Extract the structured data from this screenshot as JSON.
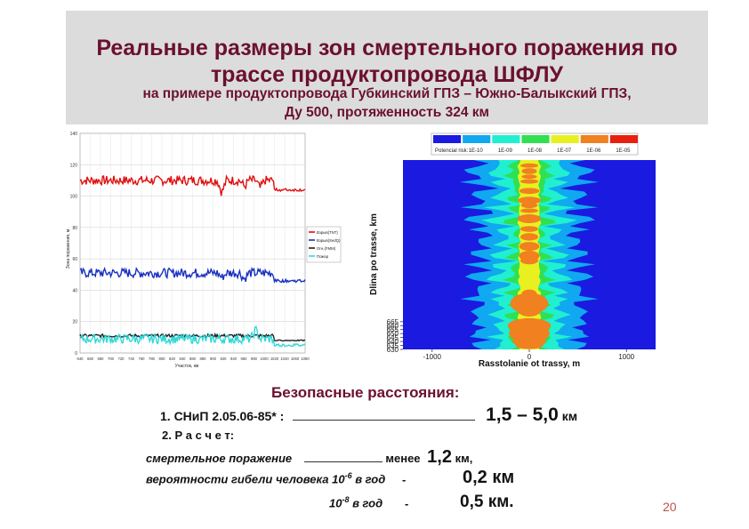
{
  "slide": {
    "title_line1": "Реальные размеры зон смертельного поражения по",
    "title_line2": "трассе продуктопровода ШФЛУ",
    "subtitle_line1": "на примере продуктопровода Губкинский ГПЗ – Южно-Балыкский ГПЗ,",
    "subtitle_line2": "Ду 500, протяженность 324 км",
    "page_number": "20"
  },
  "safe": {
    "heading": "Безопасные расстояния:",
    "item1_prefix": "1. СНиП 2.05.06-85* :",
    "item1_value": "1,5 – 5,0",
    "item1_unit": "км",
    "item2": "2. Р а с ч е т:",
    "lethal_label": "смертельное поражение",
    "lethal_less": "менее",
    "lethal_value": "1,2",
    "lethal_unit": "км,",
    "prob_label": "вероятности гибели человека 10",
    "prob_exp1": "-6",
    "prob_per_year": " в год",
    "dash": "-",
    "prob_value1": "0,2 км",
    "prob_prefix2": "10",
    "prob_exp2": "-8",
    "prob_value2": "0,5 км."
  },
  "chart_data": [
    {
      "type": "line",
      "ylabel": "Зона поражения, м",
      "xlabel": "Участок, км",
      "ylim": [
        0,
        140
      ],
      "y_ticks": [
        "0",
        "20",
        "40",
        "60",
        "80",
        "100",
        "120",
        "140"
      ],
      "x_ticks": [
        "640",
        "660",
        "680",
        "700",
        "720",
        "740",
        "760",
        "780",
        "800",
        "820",
        "840",
        "860",
        "880",
        "900",
        "920",
        "940",
        "960",
        "980",
        "1000",
        "1020",
        "1040",
        "1060",
        "1080"
      ],
      "legend_placement": "right",
      "grid": true,
      "series": [
        {
          "name": "Взрыв(TNT)",
          "color": "#e01010",
          "base": 110,
          "amp": 3,
          "events": [
            {
              "x": 0.63,
              "dip": 8
            },
            {
              "x": 0.73,
              "dip": 4
            },
            {
              "x": 0.8,
              "dip": 5
            }
          ],
          "end": 104
        },
        {
          "name": "Взрыв(SedQ)",
          "color": "#1830c0",
          "base": 51,
          "amp": 3,
          "events": [
            {
              "x": 0.63,
              "dip": 3
            },
            {
              "x": 0.73,
              "dip": 4
            }
          ],
          "end": 46
        },
        {
          "name": "Огн.(FMM)",
          "color": "#202020",
          "base": 11,
          "amp": 1,
          "events": [],
          "end": 8
        },
        {
          "name": "Пожар",
          "color": "#30d8d8",
          "base": 9,
          "amp": 3,
          "events": [
            {
              "x": 0.78,
              "dip": -6
            }
          ],
          "end": 5
        }
      ]
    },
    {
      "type": "heatmap",
      "ylabel": "Dlina po trasse, km",
      "xlabel": "Rasstolanie ot trassy, m",
      "xlim": [
        -1300,
        1300
      ],
      "ylim": [
        630,
        869
      ],
      "x_ticks": [
        "-1000",
        "0",
        "1000"
      ],
      "y_ticks": [
        "630",
        "635",
        "640",
        "645",
        "650",
        "655",
        "660",
        "665"
      ],
      "legend_title": "Potencial risk:",
      "legend_labels": [
        "1E-10",
        "1E-09",
        "1E-08",
        "1E-07",
        "1E-06",
        "1E-05"
      ],
      "colors": [
        "#1a1ae0",
        "#10a8f0",
        "#20f0d0",
        "#30e050",
        "#e8f020",
        "#f08020",
        "#e82010"
      ]
    }
  ]
}
